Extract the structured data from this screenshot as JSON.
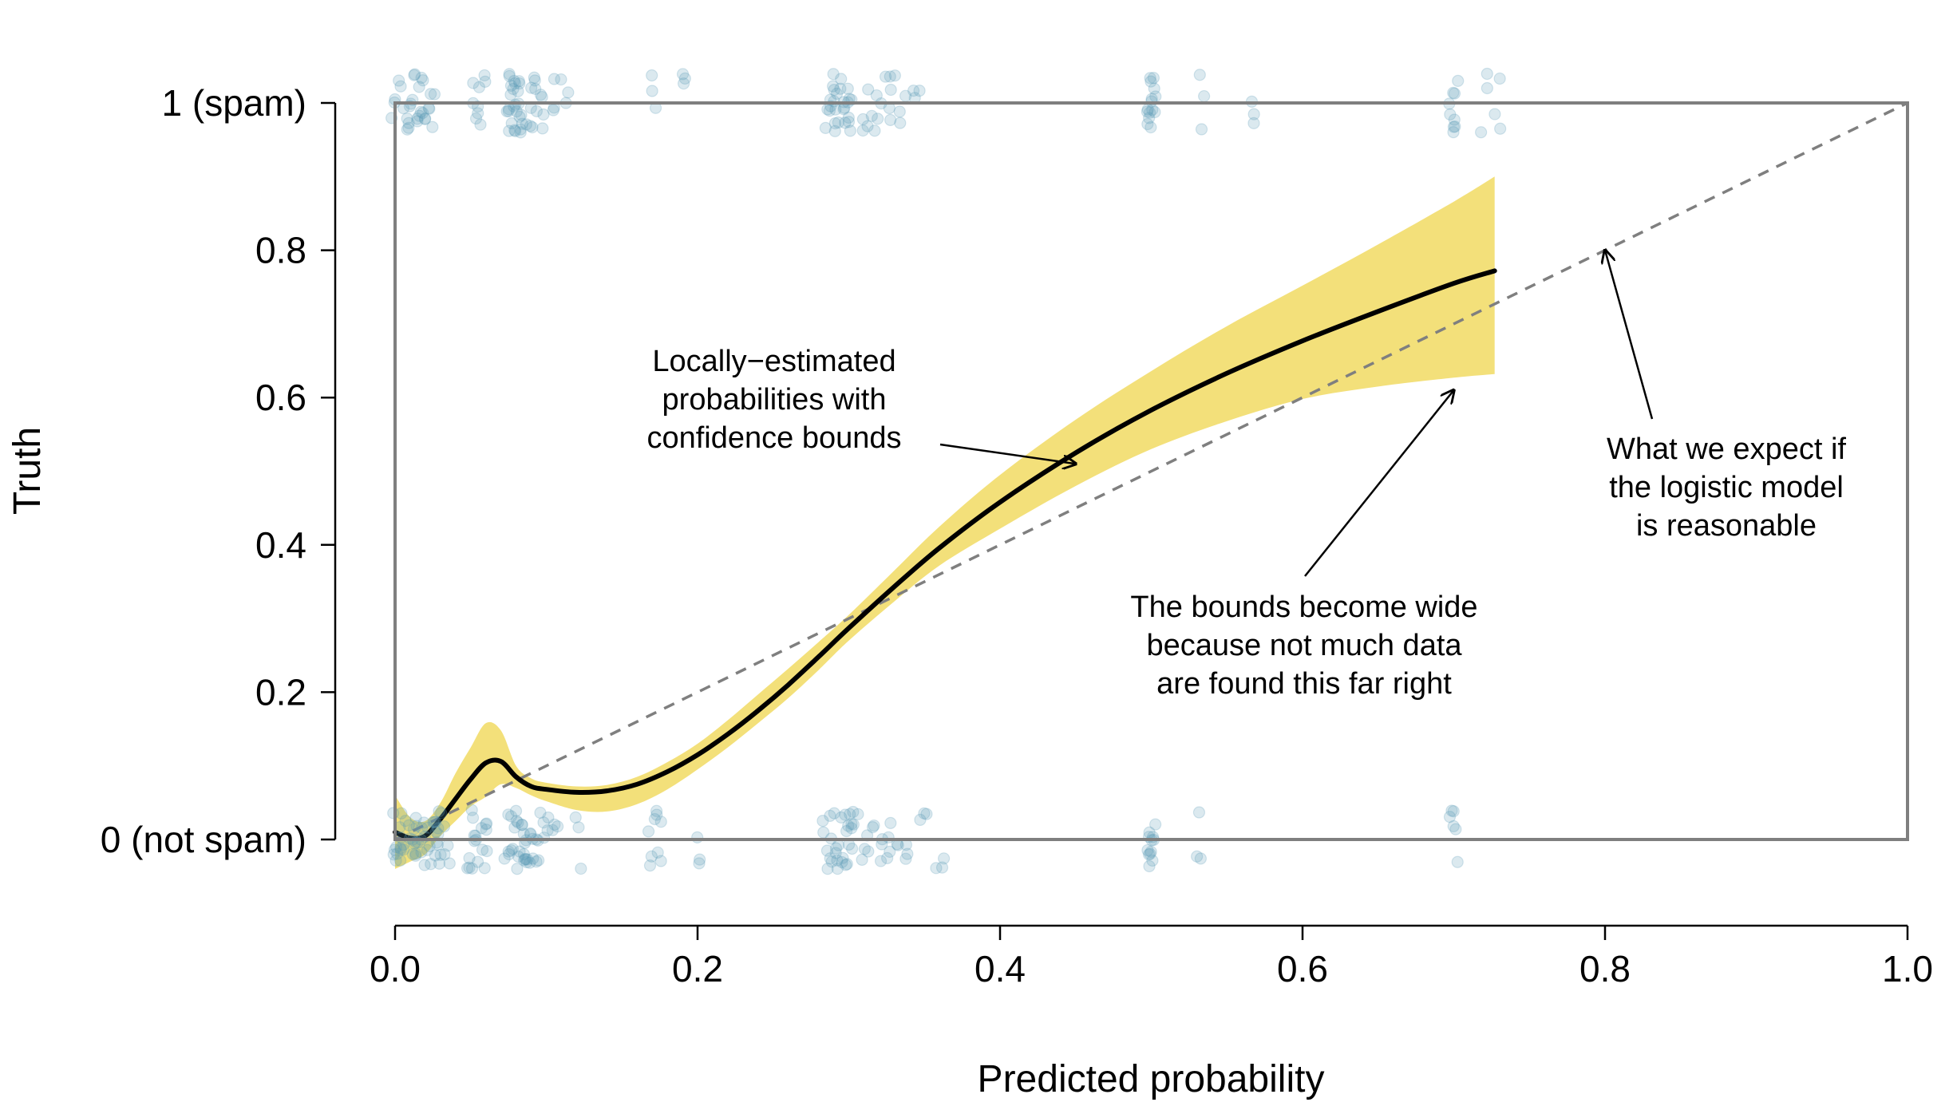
{
  "chart_data": {
    "type": "scatter",
    "xlabel": "Predicted probability",
    "ylabel": "Truth",
    "xlim": [
      0,
      1
    ],
    "ylim": [
      0,
      1
    ],
    "x_ticks": [
      {
        "value": 0.0,
        "label": "0.0"
      },
      {
        "value": 0.2,
        "label": "0.2"
      },
      {
        "value": 0.4,
        "label": "0.4"
      },
      {
        "value": 0.6,
        "label": "0.6"
      },
      {
        "value": 0.8,
        "label": "0.8"
      },
      {
        "value": 1.0,
        "label": "1.0"
      }
    ],
    "y_ticks": [
      {
        "value": 0.0,
        "label": "0 (not spam)"
      },
      {
        "value": 0.2,
        "label": "0.2"
      },
      {
        "value": 0.4,
        "label": "0.4"
      },
      {
        "value": 0.6,
        "label": "0.6"
      },
      {
        "value": 0.8,
        "label": "0.8"
      },
      {
        "value": 1.0,
        "label": "1 (spam)"
      }
    ],
    "colors": {
      "points": "#5b9bb7",
      "band": "#f3e07a",
      "curve": "#000000",
      "reference": "#7f7f7f",
      "frame": "#7f7f7f"
    },
    "reference_line": {
      "x": [
        0,
        1
      ],
      "y": [
        0,
        1
      ],
      "style": "dashed"
    },
    "smooth_curve": {
      "x": [
        0.0,
        0.01,
        0.02,
        0.03,
        0.04,
        0.05,
        0.06,
        0.07,
        0.08,
        0.09,
        0.1,
        0.12,
        0.14,
        0.16,
        0.18,
        0.2,
        0.22,
        0.24,
        0.26,
        0.28,
        0.3,
        0.33,
        0.36,
        0.4,
        0.45,
        0.5,
        0.55,
        0.6,
        0.65,
        0.7,
        0.727
      ],
      "y": [
        0.01,
        0.002,
        0.005,
        0.028,
        0.055,
        0.082,
        0.104,
        0.106,
        0.085,
        0.072,
        0.068,
        0.064,
        0.066,
        0.075,
        0.092,
        0.115,
        0.143,
        0.175,
        0.21,
        0.248,
        0.287,
        0.343,
        0.396,
        0.458,
        0.525,
        0.583,
        0.633,
        0.677,
        0.717,
        0.755,
        0.772
      ]
    },
    "band_upper": [
      0.06,
      0.03,
      0.025,
      0.05,
      0.09,
      0.125,
      0.158,
      0.148,
      0.1,
      0.083,
      0.077,
      0.072,
      0.074,
      0.085,
      0.105,
      0.13,
      0.162,
      0.197,
      0.232,
      0.268,
      0.305,
      0.365,
      0.425,
      0.495,
      0.57,
      0.636,
      0.697,
      0.752,
      0.808,
      0.866,
      0.9
    ],
    "band_lower": [
      -0.04,
      -0.03,
      -0.02,
      0.005,
      0.025,
      0.045,
      0.058,
      0.075,
      0.07,
      0.06,
      0.052,
      0.04,
      0.038,
      0.048,
      0.068,
      0.095,
      0.125,
      0.158,
      0.192,
      0.23,
      0.27,
      0.323,
      0.372,
      0.422,
      0.48,
      0.53,
      0.568,
      0.598,
      0.615,
      0.627,
      0.632
    ],
    "points_spam_x": [
      0.0,
      0.005,
      0.008,
      0.01,
      0.012,
      0.015,
      0.018,
      0.02,
      0.022,
      0.025,
      0.052,
      0.055,
      0.057,
      0.075,
      0.077,
      0.078,
      0.079,
      0.08,
      0.081,
      0.082,
      0.083,
      0.085,
      0.09,
      0.093,
      0.095,
      0.1,
      0.105,
      0.112,
      0.17,
      0.19,
      0.285,
      0.288,
      0.29,
      0.292,
      0.294,
      0.296,
      0.298,
      0.3,
      0.302,
      0.31,
      0.315,
      0.32,
      0.325,
      0.33,
      0.335,
      0.345,
      0.5,
      0.5,
      0.5,
      0.5,
      0.5,
      0.533,
      0.568,
      0.7,
      0.7,
      0.7,
      0.72,
      0.73
    ],
    "points_ham_x": [
      0.0,
      0.002,
      0.004,
      0.006,
      0.008,
      0.01,
      0.012,
      0.014,
      0.016,
      0.018,
      0.02,
      0.022,
      0.024,
      0.026,
      0.028,
      0.03,
      0.032,
      0.034,
      0.05,
      0.052,
      0.054,
      0.056,
      0.058,
      0.06,
      0.074,
      0.076,
      0.078,
      0.08,
      0.082,
      0.084,
      0.086,
      0.088,
      0.09,
      0.092,
      0.094,
      0.096,
      0.1,
      0.105,
      0.12,
      0.17,
      0.172,
      0.174,
      0.2,
      0.285,
      0.288,
      0.29,
      0.292,
      0.294,
      0.296,
      0.298,
      0.3,
      0.302,
      0.305,
      0.31,
      0.315,
      0.32,
      0.325,
      0.33,
      0.338,
      0.35,
      0.36,
      0.5,
      0.5,
      0.5,
      0.5,
      0.533,
      0.7,
      0.7
    ],
    "annotations": [
      {
        "lines": [
          "Locally−estimated",
          "probabilities with",
          "confidence bounds"
        ],
        "points_to": [
          0.45,
          0.51
        ]
      },
      {
        "lines": [
          "The bounds become wide",
          "because not much data",
          "are found this far right"
        ],
        "points_to": [
          0.7,
          0.61
        ]
      },
      {
        "lines": [
          "What we expect if",
          "the logistic model",
          "is reasonable"
        ],
        "points_to": [
          0.8,
          0.8
        ]
      }
    ]
  }
}
